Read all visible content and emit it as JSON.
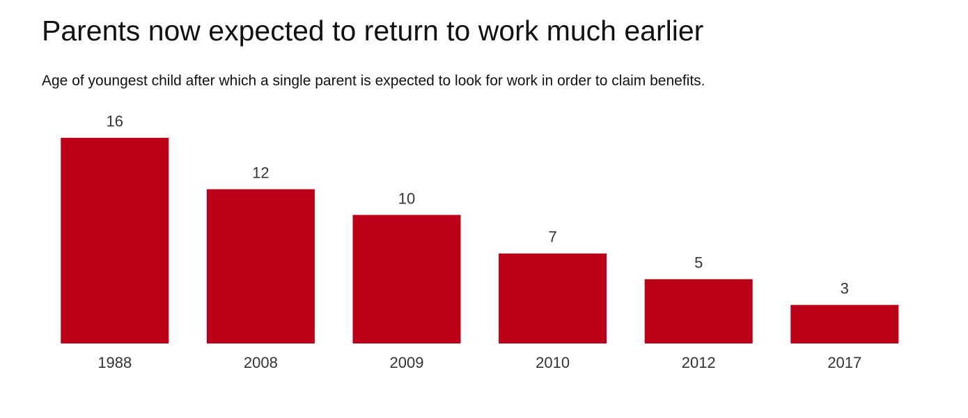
{
  "chart_data": {
    "type": "bar",
    "title": "Parents now expected to return to work much earlier",
    "subtitle": "Age of youngest child after which a single parent is expected to look for work in order to claim benefits.",
    "categories": [
      "1988",
      "2008",
      "2009",
      "2010",
      "2012",
      "2017"
    ],
    "values": [
      16,
      12,
      10,
      7,
      5,
      3
    ],
    "color": "#bb0018"
  }
}
